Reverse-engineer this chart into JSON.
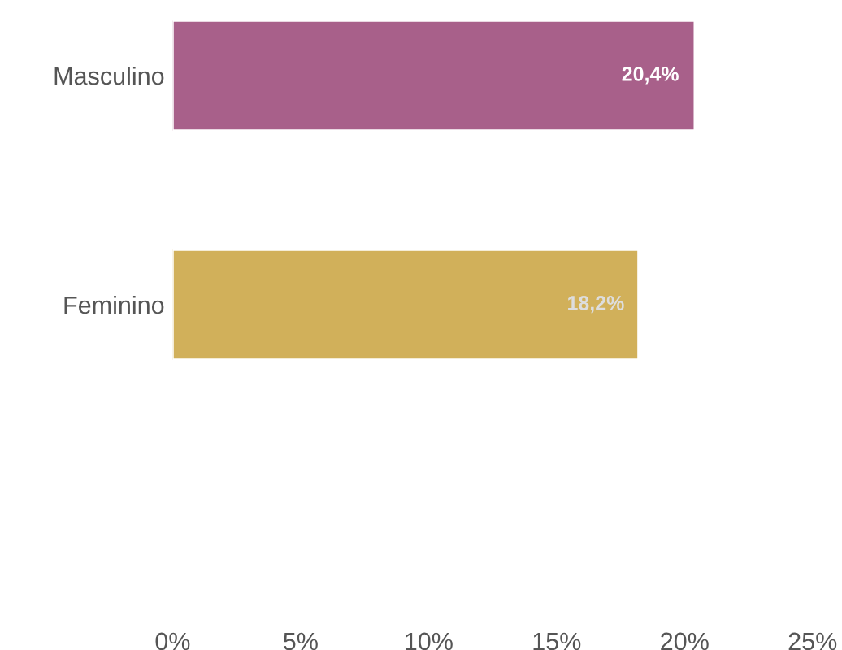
{
  "chart_data": {
    "type": "bar",
    "orientation": "horizontal",
    "categories": [
      "Masculino",
      "Feminino"
    ],
    "values": [
      20.4,
      18.2
    ],
    "colors": [
      "#a8608a",
      "#d1b05a"
    ],
    "value_labels": [
      "20,4%",
      "18,2%"
    ],
    "xlim": [
      0,
      25
    ],
    "xticks": [
      {
        "value": 0,
        "label": "0%"
      },
      {
        "value": 5,
        "label": "5%"
      },
      {
        "value": 10,
        "label": "10%"
      },
      {
        "value": 15,
        "label": "15%"
      },
      {
        "value": 20,
        "label": "20%"
      },
      {
        "value": 25,
        "label": "25%"
      }
    ],
    "grid": false,
    "legend": false
  }
}
